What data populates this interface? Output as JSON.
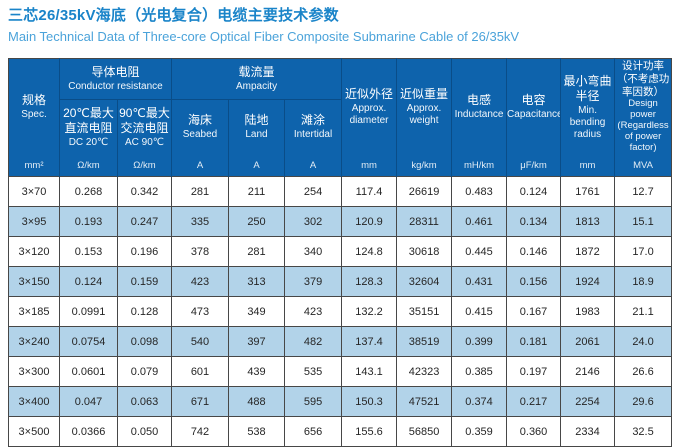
{
  "title": {
    "zh": "三芯26/35kV海底（光电复合）电缆主要技术参数",
    "en": "Main Technical Data of Three-core Optical Fiber Composite Submarine Cable of 26/35kV"
  },
  "chart_data": {
    "type": "table",
    "title": "三芯26/35kV海底（光电复合）电缆主要技术参数",
    "subtitle": "Main Technical Data of Three-core Optical Fiber Composite Submarine Cable of 26/35kV",
    "column_groups": [
      {
        "zh": "导体电阻",
        "en": "Conductor resistance",
        "covers_columns": [
          1,
          2
        ]
      },
      {
        "zh": "载流量",
        "en": "Ampacity",
        "covers_columns": [
          3,
          4,
          5
        ]
      }
    ],
    "columns": [
      {
        "zh": "规格",
        "en": "Spec.",
        "unit": "mm²"
      },
      {
        "zh": "20℃最大直流电阻",
        "en": "DC 20℃",
        "unit": "Ω/km"
      },
      {
        "zh": "90℃最大交流电阻",
        "en": "AC 90℃",
        "unit": "Ω/km"
      },
      {
        "zh": "海床",
        "en": "Seabed",
        "unit": "A"
      },
      {
        "zh": "陆地",
        "en": "Land",
        "unit": "A"
      },
      {
        "zh": "滩涂",
        "en": "Intertidal",
        "unit": "A"
      },
      {
        "zh": "近似外径",
        "en": "Approx. diameter",
        "unit": "mm"
      },
      {
        "zh": "近似重量",
        "en": "Approx. weight",
        "unit": "kg/km"
      },
      {
        "zh": "电感",
        "en": "Inductance",
        "unit": "mH/km"
      },
      {
        "zh": "电容",
        "en": "Capacitance",
        "unit": "μF/km"
      },
      {
        "zh": "最小弯曲半径",
        "en": "Min. bending radius",
        "unit": "mm"
      },
      {
        "zh": "设计功率（不考虑功率因数）",
        "en": "Design power (Regardless of power factor)",
        "unit": "MVA"
      }
    ],
    "rows": [
      [
        "3×70",
        "0.268",
        "0.342",
        "281",
        "211",
        "254",
        "117.4",
        "26619",
        "0.483",
        "0.124",
        "1761",
        "12.7"
      ],
      [
        "3×95",
        "0.193",
        "0.247",
        "335",
        "250",
        "302",
        "120.9",
        "28311",
        "0.461",
        "0.134",
        "1813",
        "15.1"
      ],
      [
        "3×120",
        "0.153",
        "0.196",
        "378",
        "281",
        "340",
        "124.8",
        "30618",
        "0.445",
        "0.146",
        "1872",
        "17.0"
      ],
      [
        "3×150",
        "0.124",
        "0.159",
        "423",
        "313",
        "379",
        "128.3",
        "32604",
        "0.431",
        "0.156",
        "1924",
        "18.9"
      ],
      [
        "3×185",
        "0.0991",
        "0.128",
        "473",
        "349",
        "423",
        "132.2",
        "35151",
        "0.415",
        "0.167",
        "1983",
        "21.1"
      ],
      [
        "3×240",
        "0.0754",
        "0.098",
        "540",
        "397",
        "482",
        "137.4",
        "38519",
        "0.399",
        "0.181",
        "2061",
        "24.0"
      ],
      [
        "3×300",
        "0.0601",
        "0.079",
        "601",
        "439",
        "535",
        "143.1",
        "42323",
        "0.385",
        "0.197",
        "2146",
        "26.6"
      ],
      [
        "3×400",
        "0.047",
        "0.063",
        "671",
        "488",
        "595",
        "150.3",
        "47521",
        "0.374",
        "0.217",
        "2254",
        "29.6"
      ],
      [
        "3×500",
        "0.0366",
        "0.050",
        "742",
        "538",
        "656",
        "155.6",
        "56850",
        "0.359",
        "0.360",
        "2334",
        "32.5"
      ]
    ]
  },
  "colors": {
    "header_bg": "#0e63ac",
    "header_divider": "#0a4d88",
    "stripe_row_bg": "#b2d3e9",
    "body_border": "#474747",
    "title_zh": "#1a84c9",
    "title_en": "#4ba3da",
    "body_text": "#262626"
  }
}
